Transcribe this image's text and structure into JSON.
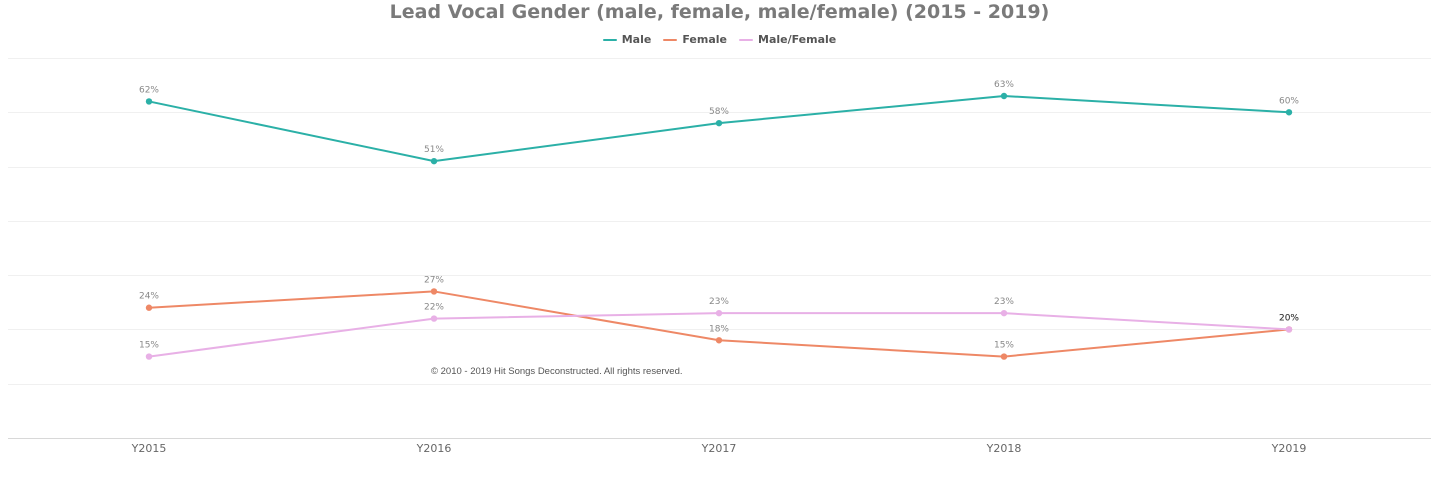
{
  "chart_data": {
    "type": "line",
    "title": "Lead Vocal Gender (male, female, male/female) (2015 - 2019)",
    "categories": [
      "Y2015",
      "Y2016",
      "Y2017",
      "Y2018",
      "Y2019"
    ],
    "series": [
      {
        "name": "Male",
        "color": "#2bb0a7",
        "values": [
          62,
          51,
          58,
          63,
          60
        ],
        "labels": [
          "62%",
          "51%",
          "58%",
          "63%",
          "60%"
        ]
      },
      {
        "name": "Female",
        "color": "#ee8866",
        "values": [
          24,
          27,
          18,
          15,
          20
        ],
        "labels": [
          "24%",
          "27%",
          "18%",
          "15%",
          "20%"
        ]
      },
      {
        "name": "Male/Female",
        "color": "#e8b0e6",
        "values": [
          15,
          22,
          23,
          23,
          20
        ],
        "labels": [
          "15%",
          "22%",
          "23%",
          "23%",
          "20%"
        ]
      }
    ],
    "ylim": [
      0,
      70
    ],
    "grid": true,
    "legend": "top-center",
    "xlabel": "",
    "ylabel": ""
  },
  "footer": {
    "copyright": "© 2010 - 2019 Hit Songs Deconstructed. All rights reserved."
  }
}
